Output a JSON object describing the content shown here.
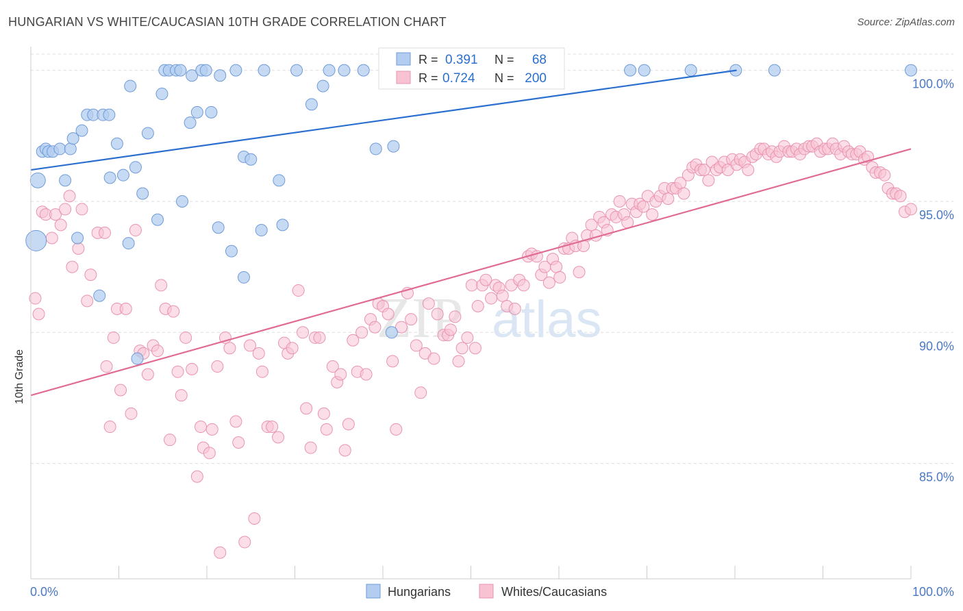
{
  "title": "HUNGARIAN VS WHITE/CAUCASIAN 10TH GRADE CORRELATION CHART",
  "source": "Source: ZipAtlas.com",
  "watermark": {
    "zip": "ZIP",
    "atlas": "atlas"
  },
  "colors": {
    "blue_fill": "#b3cdf0",
    "blue_stroke": "#6f9bd8",
    "blue_line": "#2a6fd0",
    "pink_fill": "#f7c3d3",
    "pink_stroke": "#e993b0",
    "pink_line": "#e06b94",
    "tick_label": "#4a78c4",
    "grid": "#dddddd"
  },
  "legend": {
    "r_label": "R =",
    "n_label": "N =",
    "rows": [
      {
        "r": "0.391",
        "n": "68"
      },
      {
        "r": "0.724",
        "n": "200"
      }
    ]
  },
  "chart_data": {
    "type": "scatter",
    "title": "HUNGARIAN VS WHITE/CAUCASIAN 10TH GRADE CORRELATION CHART",
    "xlabel": "",
    "ylabel": "10th Grade",
    "xlim": [
      0,
      100
    ],
    "ylim": [
      80.6,
      100.8
    ],
    "x_tick_labels": [
      "0.0%",
      "100.0%"
    ],
    "y_ticks": [
      85,
      90,
      95,
      100
    ],
    "y_tick_labels": [
      "85.0%",
      "90.0%",
      "95.0%",
      "100.0%"
    ],
    "grid": true,
    "legend_position": "bottom-center",
    "series": [
      {
        "name": "Hungarians",
        "color": "#b3cdf0",
        "trend": {
          "x": [
            0,
            80.2
          ],
          "y": [
            96.2,
            100.0
          ]
        },
        "points": [
          [
            0.6,
            93.5
          ],
          [
            0.8,
            95.8
          ],
          [
            1.3,
            96.9
          ],
          [
            1.7,
            97.0
          ],
          [
            2.0,
            96.9
          ],
          [
            2.5,
            96.9
          ],
          [
            3.3,
            97.0
          ],
          [
            3.9,
            95.8
          ],
          [
            4.5,
            97.0
          ],
          [
            4.8,
            97.4
          ],
          [
            5.3,
            93.6
          ],
          [
            5.8,
            97.7
          ],
          [
            6.4,
            98.3
          ],
          [
            7.1,
            98.3
          ],
          [
            7.8,
            91.4
          ],
          [
            8.2,
            98.3
          ],
          [
            8.9,
            98.3
          ],
          [
            9.0,
            95.9
          ],
          [
            9.8,
            97.2
          ],
          [
            10.5,
            96.0
          ],
          [
            11.1,
            93.4
          ],
          [
            11.3,
            99.4
          ],
          [
            11.9,
            96.3
          ],
          [
            12.1,
            89.0
          ],
          [
            12.7,
            95.3
          ],
          [
            13.3,
            97.6
          ],
          [
            14.4,
            94.3
          ],
          [
            14.9,
            99.1
          ],
          [
            15.2,
            100.0
          ],
          [
            15.7,
            100.0
          ],
          [
            16.5,
            100.0
          ],
          [
            17.0,
            100.0
          ],
          [
            17.2,
            95.0
          ],
          [
            18.1,
            98.0
          ],
          [
            18.3,
            99.8
          ],
          [
            18.9,
            98.4
          ],
          [
            19.4,
            100.0
          ],
          [
            19.9,
            100.0
          ],
          [
            20.5,
            98.4
          ],
          [
            21.3,
            94.0
          ],
          [
            21.5,
            99.8
          ],
          [
            22.8,
            93.1
          ],
          [
            23.3,
            100.0
          ],
          [
            24.2,
            92.1
          ],
          [
            24.2,
            96.7
          ],
          [
            25.0,
            96.6
          ],
          [
            26.2,
            93.9
          ],
          [
            26.5,
            100.0
          ],
          [
            28.2,
            95.8
          ],
          [
            28.6,
            94.1
          ],
          [
            30.2,
            100.0
          ],
          [
            31.9,
            98.7
          ],
          [
            33.2,
            99.4
          ],
          [
            33.9,
            100.0
          ],
          [
            35.6,
            100.0
          ],
          [
            37.8,
            100.0
          ],
          [
            39.2,
            97.0
          ],
          [
            41.0,
            90.0
          ],
          [
            41.2,
            97.1
          ],
          [
            45.4,
            100.0
          ],
          [
            47.3,
            100.0
          ],
          [
            51.7,
            100.0
          ],
          [
            68.1,
            100.0
          ],
          [
            69.7,
            100.0
          ],
          [
            75.0,
            100.0
          ],
          [
            80.1,
            100.0
          ],
          [
            84.5,
            100.0
          ],
          [
            100.0,
            100.0
          ]
        ]
      },
      {
        "name": "Whites/Caucasians",
        "color": "#f7c3d3",
        "trend": {
          "x": [
            0,
            100
          ],
          "y": [
            87.6,
            97.0
          ]
        },
        "points": [
          [
            0.5,
            91.3
          ],
          [
            0.9,
            90.7
          ],
          [
            1.3,
            94.6
          ],
          [
            1.7,
            94.5
          ],
          [
            2.4,
            93.6
          ],
          [
            2.8,
            94.5
          ],
          [
            3.4,
            94.1
          ],
          [
            3.9,
            94.7
          ],
          [
            4.4,
            95.2
          ],
          [
            4.7,
            92.5
          ],
          [
            5.4,
            93.2
          ],
          [
            5.8,
            94.7
          ],
          [
            6.4,
            91.2
          ],
          [
            6.8,
            92.2
          ],
          [
            7.6,
            93.8
          ],
          [
            8.4,
            93.8
          ],
          [
            8.6,
            88.7
          ],
          [
            9.0,
            86.4
          ],
          [
            9.4,
            89.8
          ],
          [
            9.8,
            90.9
          ],
          [
            10.2,
            87.8
          ],
          [
            10.8,
            90.9
          ],
          [
            11.4,
            86.9
          ],
          [
            11.9,
            93.9
          ],
          [
            12.4,
            89.3
          ],
          [
            12.8,
            89.2
          ],
          [
            13.3,
            88.4
          ],
          [
            13.9,
            89.5
          ],
          [
            14.4,
            89.3
          ],
          [
            14.8,
            91.8
          ],
          [
            15.3,
            90.9
          ],
          [
            15.8,
            85.9
          ],
          [
            16.2,
            90.8
          ],
          [
            16.7,
            88.5
          ],
          [
            17.1,
            87.6
          ],
          [
            17.6,
            89.8
          ],
          [
            18.3,
            88.6
          ],
          [
            18.9,
            84.5
          ],
          [
            19.3,
            86.4
          ],
          [
            19.6,
            85.6
          ],
          [
            20.3,
            85.4
          ],
          [
            20.6,
            86.3
          ],
          [
            21.2,
            88.7
          ],
          [
            21.5,
            81.6
          ],
          [
            22.1,
            89.8
          ],
          [
            22.6,
            89.4
          ],
          [
            23.3,
            86.6
          ],
          [
            23.6,
            85.8
          ],
          [
            24.3,
            82.0
          ],
          [
            24.9,
            89.5
          ],
          [
            25.4,
            82.9
          ],
          [
            25.9,
            89.2
          ],
          [
            26.3,
            88.5
          ],
          [
            26.9,
            86.4
          ],
          [
            27.4,
            86.4
          ],
          [
            28.1,
            86.0
          ],
          [
            28.8,
            89.6
          ],
          [
            29.2,
            89.2
          ],
          [
            29.7,
            89.4
          ],
          [
            30.4,
            91.6
          ],
          [
            30.9,
            90.0
          ],
          [
            31.3,
            87.1
          ],
          [
            31.8,
            85.6
          ],
          [
            32.3,
            89.8
          ],
          [
            32.8,
            89.8
          ],
          [
            33.3,
            86.9
          ],
          [
            33.6,
            86.3
          ],
          [
            34.3,
            88.7
          ],
          [
            34.8,
            88.1
          ],
          [
            35.2,
            88.4
          ],
          [
            35.7,
            85.5
          ],
          [
            36.1,
            86.5
          ],
          [
            36.6,
            89.7
          ],
          [
            37.1,
            88.5
          ],
          [
            37.6,
            90.0
          ],
          [
            38.1,
            88.4
          ],
          [
            38.6,
            90.5
          ],
          [
            39.1,
            90.2
          ],
          [
            39.5,
            91.1
          ],
          [
            40.0,
            91.0
          ],
          [
            40.6,
            90.7
          ],
          [
            41.1,
            88.9
          ],
          [
            41.5,
            86.3
          ],
          [
            42.1,
            90.2
          ],
          [
            42.8,
            91.5
          ],
          [
            43.2,
            90.5
          ],
          [
            43.8,
            89.5
          ],
          [
            44.3,
            87.7
          ],
          [
            44.8,
            89.2
          ],
          [
            45.2,
            91.1
          ],
          [
            45.8,
            89.0
          ],
          [
            46.2,
            90.7
          ],
          [
            46.9,
            89.9
          ],
          [
            47.4,
            89.9
          ],
          [
            47.7,
            90.1
          ],
          [
            48.2,
            90.6
          ],
          [
            48.6,
            88.9
          ],
          [
            49.0,
            89.4
          ],
          [
            49.6,
            89.8
          ],
          [
            50.1,
            91.8
          ],
          [
            50.5,
            89.4
          ],
          [
            50.8,
            91.0
          ],
          [
            51.3,
            91.8
          ],
          [
            51.7,
            92.0
          ],
          [
            52.3,
            91.3
          ],
          [
            52.8,
            91.8
          ],
          [
            53.2,
            91.7
          ],
          [
            53.6,
            91.4
          ],
          [
            54.1,
            91.0
          ],
          [
            54.6,
            91.8
          ],
          [
            55.0,
            90.9
          ],
          [
            55.5,
            92.0
          ],
          [
            56.0,
            91.8
          ],
          [
            56.5,
            92.9
          ],
          [
            56.9,
            93.0
          ],
          [
            57.5,
            92.9
          ],
          [
            58.0,
            92.2
          ],
          [
            58.4,
            92.5
          ],
          [
            58.9,
            91.9
          ],
          [
            59.3,
            92.8
          ],
          [
            59.7,
            92.5
          ],
          [
            60.1,
            92.1
          ],
          [
            60.6,
            93.2
          ],
          [
            61.1,
            93.2
          ],
          [
            61.5,
            93.6
          ],
          [
            61.9,
            93.3
          ],
          [
            62.3,
            92.3
          ],
          [
            62.8,
            93.3
          ],
          [
            63.2,
            93.7
          ],
          [
            63.7,
            94.1
          ],
          [
            64.2,
            93.7
          ],
          [
            64.6,
            94.4
          ],
          [
            65.1,
            94.2
          ],
          [
            65.5,
            93.9
          ],
          [
            66.0,
            94.5
          ],
          [
            66.5,
            94.4
          ],
          [
            66.9,
            95.0
          ],
          [
            67.4,
            94.5
          ],
          [
            67.8,
            94.2
          ],
          [
            68.3,
            94.9
          ],
          [
            68.8,
            94.6
          ],
          [
            69.2,
            94.9
          ],
          [
            69.6,
            94.8
          ],
          [
            70.1,
            95.2
          ],
          [
            70.6,
            94.5
          ],
          [
            71.0,
            95.0
          ],
          [
            71.5,
            95.2
          ],
          [
            72.0,
            95.5
          ],
          [
            72.4,
            95.1
          ],
          [
            72.9,
            95.5
          ],
          [
            73.3,
            95.5
          ],
          [
            73.8,
            95.7
          ],
          [
            74.2,
            95.3
          ],
          [
            74.7,
            96.0
          ],
          [
            75.2,
            96.3
          ],
          [
            75.6,
            96.4
          ],
          [
            76.1,
            96.2
          ],
          [
            76.5,
            96.2
          ],
          [
            77.0,
            95.8
          ],
          [
            77.4,
            96.5
          ],
          [
            77.9,
            96.2
          ],
          [
            78.3,
            96.3
          ],
          [
            78.8,
            96.5
          ],
          [
            79.2,
            96.2
          ],
          [
            79.7,
            96.6
          ],
          [
            80.2,
            96.4
          ],
          [
            80.6,
            96.6
          ],
          [
            81.1,
            96.5
          ],
          [
            81.5,
            96.2
          ],
          [
            82.0,
            96.7
          ],
          [
            82.4,
            96.8
          ],
          [
            82.9,
            97.0
          ],
          [
            83.3,
            97.0
          ],
          [
            83.8,
            96.8
          ],
          [
            84.2,
            96.9
          ],
          [
            84.7,
            96.7
          ],
          [
            85.1,
            96.9
          ],
          [
            85.6,
            97.1
          ],
          [
            86.1,
            96.9
          ],
          [
            86.5,
            96.9
          ],
          [
            87.0,
            97.0
          ],
          [
            87.4,
            96.8
          ],
          [
            87.9,
            97.0
          ],
          [
            88.4,
            97.1
          ],
          [
            88.8,
            97.1
          ],
          [
            89.3,
            97.2
          ],
          [
            89.7,
            96.9
          ],
          [
            90.2,
            97.0
          ],
          [
            90.6,
            97.0
          ],
          [
            91.1,
            97.2
          ],
          [
            91.5,
            97.0
          ],
          [
            92.0,
            96.8
          ],
          [
            92.4,
            97.1
          ],
          [
            92.9,
            96.9
          ],
          [
            93.3,
            96.8
          ],
          [
            93.8,
            96.8
          ],
          [
            94.2,
            96.9
          ],
          [
            94.7,
            96.6
          ],
          [
            95.1,
            96.7
          ],
          [
            95.6,
            96.3
          ],
          [
            96.0,
            96.1
          ],
          [
            96.5,
            96.1
          ],
          [
            97.0,
            96.0
          ],
          [
            97.4,
            95.5
          ],
          [
            97.9,
            95.3
          ],
          [
            98.3,
            95.3
          ],
          [
            98.8,
            95.2
          ],
          [
            99.3,
            94.6
          ],
          [
            100.0,
            94.7
          ]
        ]
      }
    ]
  }
}
